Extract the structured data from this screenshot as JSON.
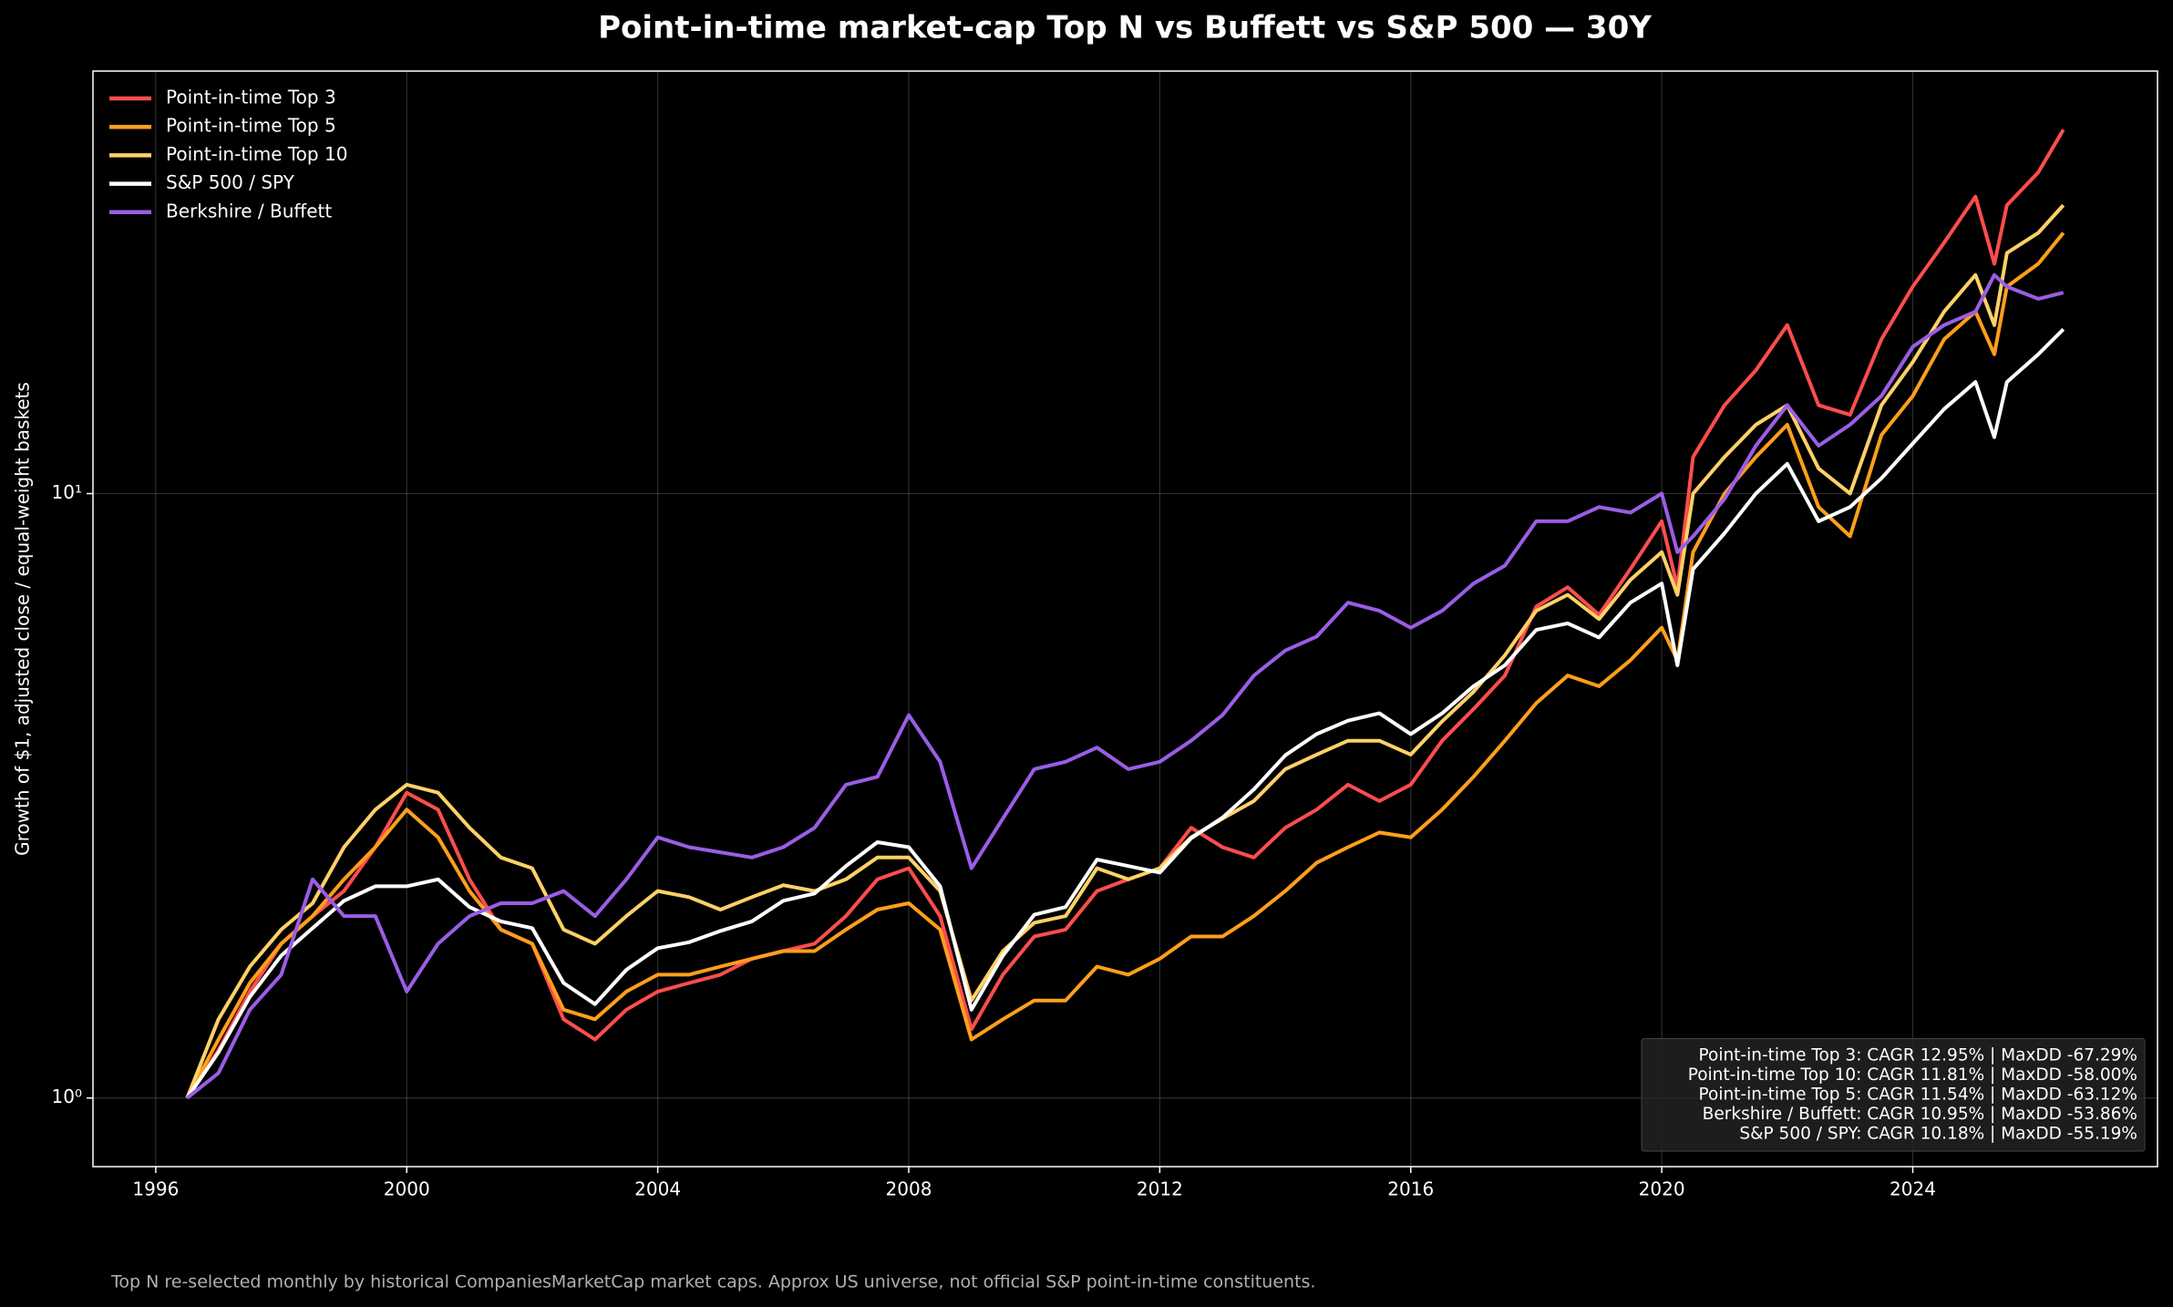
{
  "chart_data": {
    "type": "line",
    "title": "Point-in-time market-cap Top N vs Buffett vs S&P 500 — 30Y",
    "y_label": "Growth of $1, adjusted close / equal-weight baskets",
    "footnote": "Top N re-selected monthly by historical CompaniesMarketCap market caps. Approx US universe, not official S&P point-in-time constituents.",
    "annotations": [
      "Point-in-time Top 3: CAGR 12.95% | MaxDD -67.29%",
      "Point-in-time Top 10: CAGR 11.81% | MaxDD -58.00%",
      "Point-in-time Top 5: CAGR 11.54% | MaxDD -63.12%",
      "Berkshire / Buffett: CAGR 10.95% | MaxDD -53.86%",
      "S&P 500 / SPY: CAGR 10.18% | MaxDD -55.19%"
    ],
    "log_y": true,
    "grid": true,
    "legend": "upper left",
    "xlim": [
      1995,
      2027.9
    ],
    "xticks": [
      1996,
      2000,
      2004,
      2008,
      2012,
      2016,
      2020,
      2024
    ],
    "ylim": [
      0.77,
      50
    ],
    "yticks": [
      {
        "value": 1,
        "label": "10⁰"
      },
      {
        "value": 10,
        "label": "10¹"
      }
    ],
    "x": [
      1996.5,
      1997,
      1997.5,
      1998,
      1998.5,
      1999,
      1999.5,
      2000,
      2000.5,
      2001,
      2001.5,
      2002,
      2002.5,
      2003,
      2003.5,
      2004,
      2004.5,
      2005,
      2005.5,
      2006,
      2006.5,
      2007,
      2007.5,
      2008,
      2008.5,
      2009,
      2009.5,
      2010,
      2010.5,
      2011,
      2011.5,
      2012,
      2012.5,
      2013,
      2013.5,
      2014,
      2014.5,
      2015,
      2015.5,
      2016,
      2016.5,
      2017,
      2017.5,
      2018,
      2018.5,
      2019,
      2019.5,
      2020,
      2020.25,
      2020.5,
      2021,
      2021.5,
      2022,
      2022.5,
      2023,
      2023.5,
      2024,
      2024.5,
      2025,
      2025.3,
      2025.5,
      2026,
      2026.4
    ],
    "series": [
      {
        "name": "Point-in-time Top 3",
        "color": "#ff4d4d",
        "values": [
          1.0,
          1.2,
          1.5,
          1.8,
          2.0,
          2.2,
          2.6,
          3.2,
          3.0,
          2.3,
          1.9,
          1.8,
          1.35,
          1.25,
          1.4,
          1.5,
          1.55,
          1.6,
          1.7,
          1.75,
          1.8,
          2.0,
          2.3,
          2.4,
          2.0,
          1.3,
          1.6,
          1.85,
          1.9,
          2.2,
          2.3,
          2.4,
          2.8,
          2.6,
          2.5,
          2.8,
          3.0,
          3.3,
          3.1,
          3.3,
          3.9,
          4.4,
          5.0,
          6.5,
          7.0,
          6.3,
          7.5,
          9.0,
          7.0,
          11.5,
          14.0,
          16.0,
          19.0,
          14.0,
          13.5,
          18,
          22,
          26,
          31,
          24,
          30,
          34,
          40
        ]
      },
      {
        "name": "Point-in-time Top 5",
        "color": "#ff9f1c",
        "values": [
          1.0,
          1.25,
          1.55,
          1.8,
          2.0,
          2.3,
          2.6,
          3.0,
          2.7,
          2.2,
          1.9,
          1.8,
          1.4,
          1.35,
          1.5,
          1.6,
          1.6,
          1.65,
          1.7,
          1.75,
          1.75,
          1.9,
          2.05,
          2.1,
          1.9,
          1.25,
          1.35,
          1.45,
          1.45,
          1.65,
          1.6,
          1.7,
          1.85,
          1.85,
          2.0,
          2.2,
          2.45,
          2.6,
          2.75,
          2.7,
          3.0,
          3.4,
          3.9,
          4.5,
          5.0,
          4.8,
          5.3,
          6.0,
          5.3,
          8.0,
          10.0,
          11.5,
          13.0,
          9.5,
          8.5,
          12.5,
          14.5,
          18,
          20,
          17,
          22,
          24,
          27
        ]
      },
      {
        "name": "Point-in-time Top 10",
        "color": "#ffd166",
        "values": [
          1.0,
          1.35,
          1.65,
          1.9,
          2.1,
          2.6,
          3.0,
          3.3,
          3.2,
          2.8,
          2.5,
          2.4,
          1.9,
          1.8,
          2.0,
          2.2,
          2.15,
          2.05,
          2.15,
          2.25,
          2.2,
          2.3,
          2.5,
          2.5,
          2.2,
          1.45,
          1.75,
          1.95,
          2.0,
          2.4,
          2.3,
          2.4,
          2.7,
          2.9,
          3.1,
          3.5,
          3.7,
          3.9,
          3.9,
          3.7,
          4.2,
          4.7,
          5.4,
          6.4,
          6.8,
          6.2,
          7.2,
          8.0,
          6.8,
          10,
          11.5,
          13,
          14,
          11,
          10,
          14,
          16.5,
          20,
          23,
          19,
          25,
          27,
          30
        ]
      },
      {
        "name": "S&P 500 / SPY",
        "color": "#ffffff",
        "values": [
          1.0,
          1.19,
          1.47,
          1.72,
          1.91,
          2.12,
          2.24,
          2.24,
          2.3,
          2.07,
          1.96,
          1.91,
          1.55,
          1.43,
          1.63,
          1.77,
          1.81,
          1.89,
          1.96,
          2.12,
          2.18,
          2.42,
          2.65,
          2.6,
          2.24,
          1.4,
          1.72,
          2.01,
          2.07,
          2.48,
          2.42,
          2.36,
          2.69,
          2.91,
          3.24,
          3.69,
          4.0,
          4.21,
          4.33,
          4.0,
          4.33,
          4.8,
          5.2,
          5.95,
          6.1,
          5.78,
          6.6,
          7.1,
          5.2,
          7.5,
          8.6,
          10.0,
          11.2,
          9.0,
          9.5,
          10.6,
          12.1,
          13.8,
          15.3,
          12.4,
          15.3,
          17.0,
          18.7
        ]
      },
      {
        "name": "Berkshire / Buffett",
        "color": "#9b5de5",
        "values": [
          1.0,
          1.1,
          1.4,
          1.6,
          2.3,
          2.0,
          2.0,
          1.5,
          1.8,
          2.0,
          2.1,
          2.1,
          2.2,
          2.0,
          2.3,
          2.7,
          2.6,
          2.55,
          2.5,
          2.6,
          2.8,
          3.3,
          3.4,
          4.3,
          3.6,
          2.4,
          2.9,
          3.5,
          3.6,
          3.8,
          3.5,
          3.6,
          3.9,
          4.3,
          5.0,
          5.5,
          5.8,
          6.6,
          6.4,
          6.0,
          6.4,
          7.1,
          7.6,
          9.0,
          9.0,
          9.5,
          9.3,
          10.0,
          8.0,
          8.5,
          9.8,
          12.0,
          14.0,
          12.0,
          13.0,
          14.5,
          17.5,
          19,
          20,
          23,
          22,
          21,
          21.5
        ]
      }
    ]
  }
}
